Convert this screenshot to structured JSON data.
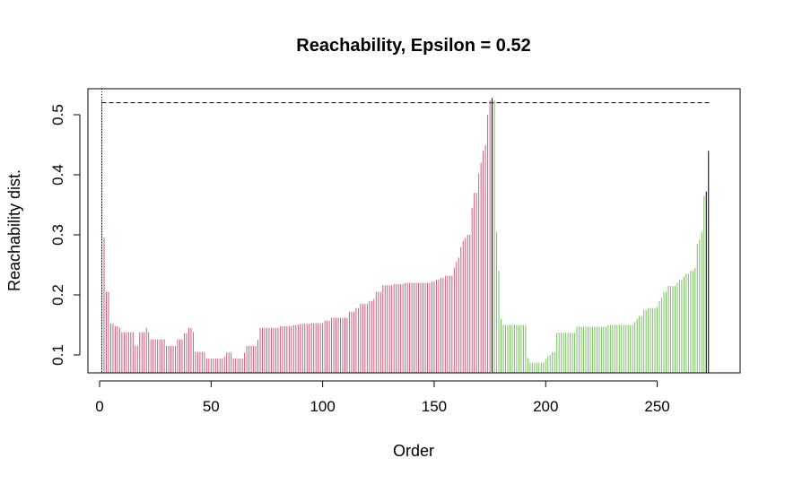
{
  "chart_data": {
    "type": "bar",
    "title": "Reachability, Epsilon = 0.52",
    "xlabel": "Order",
    "ylabel": "Reachability dist.",
    "xlim": [
      0,
      280
    ],
    "ylim": [
      0.07,
      0.545
    ],
    "xticks": [
      0,
      50,
      100,
      150,
      200,
      250
    ],
    "yticks": [
      0.1,
      0.2,
      0.3,
      0.4,
      0.5
    ],
    "epsilon": 0.52,
    "grid": false,
    "legend": "none",
    "colors": {
      "cluster_1": "#D05A7A",
      "cluster_2": "#74C25C",
      "noise": "#000000",
      "axis": "#000000"
    },
    "clusters": [
      {
        "start": 1,
        "end": 175,
        "color_key": "cluster_1"
      },
      {
        "start": 177,
        "end": 271,
        "color_key": "cluster_2"
      }
    ],
    "noise_points": [
      176
    ],
    "values": [
      0.524,
      0.295,
      0.205,
      0.205,
      0.152,
      0.152,
      0.148,
      0.148,
      0.145,
      0.138,
      0.138,
      0.138,
      0.138,
      0.138,
      0.138,
      0.115,
      0.115,
      0.138,
      0.138,
      0.138,
      0.145,
      0.138,
      0.126,
      0.126,
      0.126,
      0.126,
      0.126,
      0.126,
      0.126,
      0.115,
      0.115,
      0.115,
      0.115,
      0.115,
      0.126,
      0.126,
      0.126,
      0.136,
      0.136,
      0.145,
      0.145,
      0.138,
      0.105,
      0.105,
      0.105,
      0.105,
      0.105,
      0.094,
      0.094,
      0.094,
      0.094,
      0.094,
      0.094,
      0.094,
      0.094,
      0.097,
      0.104,
      0.104,
      0.104,
      0.094,
      0.094,
      0.094,
      0.094,
      0.094,
      0.104,
      0.115,
      0.115,
      0.115,
      0.115,
      0.115,
      0.125,
      0.145,
      0.145,
      0.145,
      0.145,
      0.145,
      0.145,
      0.145,
      0.145,
      0.145,
      0.148,
      0.148,
      0.148,
      0.148,
      0.148,
      0.148,
      0.15,
      0.15,
      0.15,
      0.152,
      0.152,
      0.152,
      0.152,
      0.152,
      0.153,
      0.153,
      0.153,
      0.153,
      0.153,
      0.153,
      0.157,
      0.157,
      0.157,
      0.162,
      0.162,
      0.162,
      0.162,
      0.162,
      0.162,
      0.162,
      0.162,
      0.172,
      0.172,
      0.172,
      0.178,
      0.178,
      0.185,
      0.185,
      0.185,
      0.185,
      0.19,
      0.19,
      0.193,
      0.205,
      0.205,
      0.205,
      0.216,
      0.216,
      0.216,
      0.216,
      0.216,
      0.218,
      0.218,
      0.218,
      0.218,
      0.218,
      0.22,
      0.22,
      0.22,
      0.22,
      0.22,
      0.22,
      0.22,
      0.22,
      0.22,
      0.22,
      0.22,
      0.22,
      0.222,
      0.222,
      0.225,
      0.225,
      0.228,
      0.228,
      0.232,
      0.232,
      0.232,
      0.232,
      0.245,
      0.255,
      0.262,
      0.28,
      0.29,
      0.295,
      0.3,
      0.3,
      0.345,
      0.37,
      0.37,
      0.402,
      0.42,
      0.44,
      0.45,
      0.5,
      0.524,
      0.528,
      0.524,
      0.305,
      0.24,
      0.16,
      0.15,
      0.15,
      0.15,
      0.15,
      0.15,
      0.15,
      0.15,
      0.15,
      0.15,
      0.15,
      0.15,
      0.095,
      0.087,
      0.087,
      0.087,
      0.087,
      0.087,
      0.087,
      0.087,
      0.093,
      0.098,
      0.1,
      0.105,
      0.105,
      0.137,
      0.137,
      0.137,
      0.137,
      0.137,
      0.137,
      0.137,
      0.137,
      0.137,
      0.147,
      0.147,
      0.147,
      0.147,
      0.147,
      0.147,
      0.147,
      0.147,
      0.147,
      0.147,
      0.147,
      0.147,
      0.147,
      0.147,
      0.15,
      0.15,
      0.15,
      0.15,
      0.15,
      0.15,
      0.15,
      0.15,
      0.15,
      0.15,
      0.15,
      0.15,
      0.155,
      0.16,
      0.165,
      0.165,
      0.175,
      0.175,
      0.178,
      0.178,
      0.178,
      0.178,
      0.18,
      0.19,
      0.195,
      0.205,
      0.205,
      0.215,
      0.215,
      0.215,
      0.215,
      0.22,
      0.225,
      0.225,
      0.23,
      0.235,
      0.235,
      0.24,
      0.24,
      0.245,
      0.285,
      0.292,
      0.305,
      0.365,
      0.372,
      0.44
    ]
  }
}
